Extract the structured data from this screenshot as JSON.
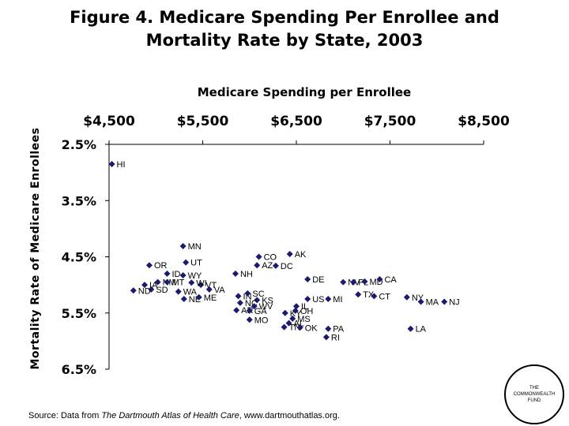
{
  "header": {
    "title_line1": "Figure 4. Medicare Spending Per Enrollee and",
    "title_line2": "Mortality Rate by State, 2003"
  },
  "footer": {
    "source_prefix": "Source:  Data from ",
    "source_italic": "The Dartmouth Atlas of Health Care",
    "source_suffix": ", www.dartmouthatlas.org."
  },
  "logo": {
    "line1": "THE",
    "line2": "COMMONWEALTH",
    "line3": "FUND"
  },
  "colors": {
    "marker": "#1a1a6e",
    "axis": "#000000"
  },
  "chart_data": {
    "type": "scatter",
    "title": "Figure 4. Medicare Spending Per Enrollee and Mortality Rate by State, 2003",
    "xlabel": "Medicare Spending per Enrollee",
    "ylabel": "Mortality Rate of Medicare Enrollees",
    "xlim": [
      4500,
      8500
    ],
    "ylim": [
      2.5,
      6.5
    ],
    "y_inverted": true,
    "x_axis_position": "top",
    "xticks": [
      4500,
      5500,
      6500,
      7500,
      8500
    ],
    "xtick_labels": [
      "$4,500",
      "$5,500",
      "$6,500",
      "$7,500",
      "$8,500"
    ],
    "yticks": [
      2.5,
      3.5,
      4.5,
      5.5,
      6.5
    ],
    "ytick_labels": [
      "2.5%",
      "3.5%",
      "4.5%",
      "5.5%",
      "6.5%"
    ],
    "points": [
      {
        "label": "HI",
        "x": 4530,
        "y": 2.85
      },
      {
        "label": "MN",
        "x": 5290,
        "y": 4.31
      },
      {
        "label": "OR",
        "x": 4930,
        "y": 4.65
      },
      {
        "label": "UT",
        "x": 5320,
        "y": 4.6
      },
      {
        "label": "ID",
        "x": 5120,
        "y": 4.8
      },
      {
        "label": "WY",
        "x": 5290,
        "y": 4.83
      },
      {
        "label": "NM",
        "x": 5020,
        "y": 4.95
      },
      {
        "label": "MT",
        "x": 5120,
        "y": 4.95
      },
      {
        "label": "IA",
        "x": 4880,
        "y": 5.0
      },
      {
        "label": "SD",
        "x": 4950,
        "y": 5.08
      },
      {
        "label": "WA",
        "x": 5240,
        "y": 5.12
      },
      {
        "label": "ND",
        "x": 4760,
        "y": 5.1
      },
      {
        "label": "NE",
        "x": 5300,
        "y": 5.25
      },
      {
        "label": "ME",
        "x": 5460,
        "y": 5.22
      },
      {
        "label": "VT",
        "x": 5480,
        "y": 5.0
      },
      {
        "label": "VA",
        "x": 5570,
        "y": 5.08
      },
      {
        "label": "WI",
        "x": 5380,
        "y": 4.96
      },
      {
        "label": "NH",
        "x": 5850,
        "y": 4.8
      },
      {
        "label": "CO",
        "x": 6100,
        "y": 4.5
      },
      {
        "label": "AZ",
        "x": 6080,
        "y": 4.65
      },
      {
        "label": "DC",
        "x": 6280,
        "y": 4.66
      },
      {
        "label": "AK",
        "x": 6430,
        "y": 4.45
      },
      {
        "label": "DE",
        "x": 6620,
        "y": 4.9
      },
      {
        "label": "IN",
        "x": 5880,
        "y": 5.2
      },
      {
        "label": "SC",
        "x": 5980,
        "y": 5.15
      },
      {
        "label": "KS",
        "x": 6080,
        "y": 5.27
      },
      {
        "label": "NC",
        "x": 5900,
        "y": 5.32
      },
      {
        "label": "WV",
        "x": 6050,
        "y": 5.38
      },
      {
        "label": "AR",
        "x": 5860,
        "y": 5.45
      },
      {
        "label": "GA",
        "x": 6000,
        "y": 5.46
      },
      {
        "label": "MO",
        "x": 6000,
        "y": 5.62
      },
      {
        "label": "KY",
        "x": 6380,
        "y": 5.5
      },
      {
        "label": "OH",
        "x": 6490,
        "y": 5.46
      },
      {
        "label": "US",
        "x": 6620,
        "y": 5.25
      },
      {
        "label": "IL",
        "x": 6500,
        "y": 5.38
      },
      {
        "label": "MI",
        "x": 6840,
        "y": 5.25
      },
      {
        "label": "MS",
        "x": 6460,
        "y": 5.6
      },
      {
        "label": "AL",
        "x": 6420,
        "y": 5.68
      },
      {
        "label": "TN",
        "x": 6370,
        "y": 5.75
      },
      {
        "label": "OK",
        "x": 6540,
        "y": 5.76
      },
      {
        "label": "PA",
        "x": 6840,
        "y": 5.78
      },
      {
        "label": "RI",
        "x": 6820,
        "y": 5.93
      },
      {
        "label": "NV",
        "x": 7000,
        "y": 4.95
      },
      {
        "label": "FL",
        "x": 7110,
        "y": 4.95
      },
      {
        "label": "MD",
        "x": 7230,
        "y": 4.94
      },
      {
        "label": "CA",
        "x": 7390,
        "y": 4.9
      },
      {
        "label": "TX",
        "x": 7160,
        "y": 5.17
      },
      {
        "label": "CT",
        "x": 7330,
        "y": 5.2
      },
      {
        "label": "NY",
        "x": 7680,
        "y": 5.22
      },
      {
        "label": "MA",
        "x": 7830,
        "y": 5.3
      },
      {
        "label": "NJ",
        "x": 8080,
        "y": 5.3
      },
      {
        "label": "LA",
        "x": 7720,
        "y": 5.78
      }
    ]
  }
}
